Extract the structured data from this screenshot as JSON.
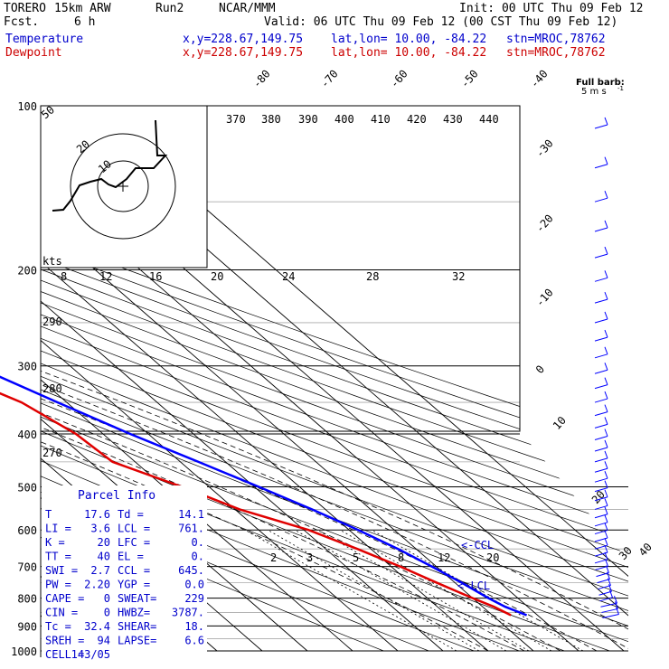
{
  "header": {
    "model": "TORERO",
    "resolution": "15km ARW",
    "run": "Run2",
    "org": "NCAR/MMM",
    "init": "Init: 00 UTC Thu 09 Feb 12",
    "fcst_label": "Fcst.",
    "fcst_value": "6 h",
    "valid": "Valid: 06 UTC Thu 09 Feb 12 (00 CST Thu 09 Feb 12)",
    "temp_label": "Temperature",
    "dew_label": "Dewpoint",
    "xy": "x,y=228.67,149.75",
    "latlon": "lat,lon= 10.00, -84.22",
    "stn": "stn=MROC,78762",
    "barb_key_1": "Full barb:",
    "barb_key_2": "5 m s",
    "barb_key_sup": "-1"
  },
  "colors": {
    "temperature": "#0000ff",
    "dewpoint": "#e00000",
    "info": "#0000cc",
    "grid": "#000000"
  },
  "chart_data": {
    "type": "line",
    "ylabel": "",
    "xlabel": "",
    "pressure_ticks": [
      "100",
      "200",
      "300",
      "400",
      "500",
      "600",
      "700",
      "800",
      "900",
      "1000"
    ],
    "temp_isotherm_labels": [
      "-80",
      "-70",
      "-60",
      "-50",
      "-40",
      "-30",
      "-20",
      "-10",
      "0",
      "10",
      "20",
      "30",
      "40"
    ],
    "theta_labels": [
      "370",
      "380",
      "390",
      "400",
      "410",
      "420",
      "430",
      "440"
    ],
    "dry_adiabat_labels": [
      "290",
      "280",
      "270"
    ],
    "mixing_ratio_labels": [
      "2",
      "3",
      "5",
      "8",
      "12",
      "20"
    ],
    "ccl_label": "<-CCL",
    "lcl_label": "<-LCL",
    "series": [
      {
        "name": "Temperature",
        "points": [
          {
            "p": 100,
            "t": -80
          },
          {
            "p": 120,
            "t": -77
          },
          {
            "p": 150,
            "t": -71
          },
          {
            "p": 200,
            "t": -60
          },
          {
            "p": 250,
            "t": -50
          },
          {
            "p": 300,
            "t": -41
          },
          {
            "p": 350,
            "t": -32
          },
          {
            "p": 400,
            "t": -24
          },
          {
            "p": 450,
            "t": -16
          },
          {
            "p": 500,
            "t": -9
          },
          {
            "p": 550,
            "t": -3
          },
          {
            "p": 600,
            "t": 2
          },
          {
            "p": 650,
            "t": 6
          },
          {
            "p": 700,
            "t": 9
          },
          {
            "p": 750,
            "t": 11.5
          },
          {
            "p": 800,
            "t": 13.5
          },
          {
            "p": 830,
            "t": 15
          },
          {
            "p": 860,
            "t": 17.6
          }
        ]
      },
      {
        "name": "Dewpoint",
        "points": [
          {
            "p": 100,
            "t": -58
          },
          {
            "p": 150,
            "t": -75
          },
          {
            "p": 200,
            "t": -64
          },
          {
            "p": 250,
            "t": -58
          },
          {
            "p": 300,
            "t": -50
          },
          {
            "p": 350,
            "t": -40
          },
          {
            "p": 400,
            "t": -36
          },
          {
            "p": 450,
            "t": -35
          },
          {
            "p": 500,
            "t": -26
          },
          {
            "p": 550,
            "t": -19
          },
          {
            "p": 600,
            "t": -9
          },
          {
            "p": 650,
            "t": -3
          },
          {
            "p": 700,
            "t": 2
          },
          {
            "p": 750,
            "t": 6
          },
          {
            "p": 800,
            "t": 10
          },
          {
            "p": 830,
            "t": 12.5
          },
          {
            "p": 860,
            "t": 14.1
          }
        ]
      }
    ],
    "hodograph": {
      "axis_label": "kts",
      "speed_labels": [
        "8",
        "12",
        "16",
        "20",
        "24",
        "28",
        "32"
      ],
      "ring_labels": [
        "50",
        "20",
        "10"
      ]
    }
  },
  "parcel_info": {
    "title": "Parcel Info",
    "rows": [
      {
        "l1": "T",
        "v1": "17.6",
        "l2": "Td =",
        "v2": "14.1"
      },
      {
        "l1": "LI =",
        "v1": "3.6",
        "l2": "LCL =",
        "v2": "761."
      },
      {
        "l1": "K =",
        "v1": "20",
        "l2": "LFC =",
        "v2": "0."
      },
      {
        "l1": "TT =",
        "v1": "40",
        "l2": "EL =",
        "v2": "0."
      },
      {
        "l1": "SWI =",
        "v1": "2.7",
        "l2": "CCL =",
        "v2": "645."
      },
      {
        "l1": "PW =",
        "v1": "2.20",
        "l2": "YGP =",
        "v2": "0.0"
      },
      {
        "l1": "CAPE =",
        "v1": "0",
        "l2": "SWEAT=",
        "v2": "229"
      },
      {
        "l1": "CIN =",
        "v1": "0",
        "l2": "HWBZ=",
        "v2": "3787."
      },
      {
        "l1": "Tc =",
        "v1": "32.4",
        "l2": "SHEAR=",
        "v2": "18."
      },
      {
        "l1": "SREH =",
        "v1": "94",
        "l2": "LAPSE=",
        "v2": "6.6"
      },
      {
        "l1": "CELL =",
        "v1": "143/05",
        "l2": "",
        "v2": ""
      }
    ]
  }
}
